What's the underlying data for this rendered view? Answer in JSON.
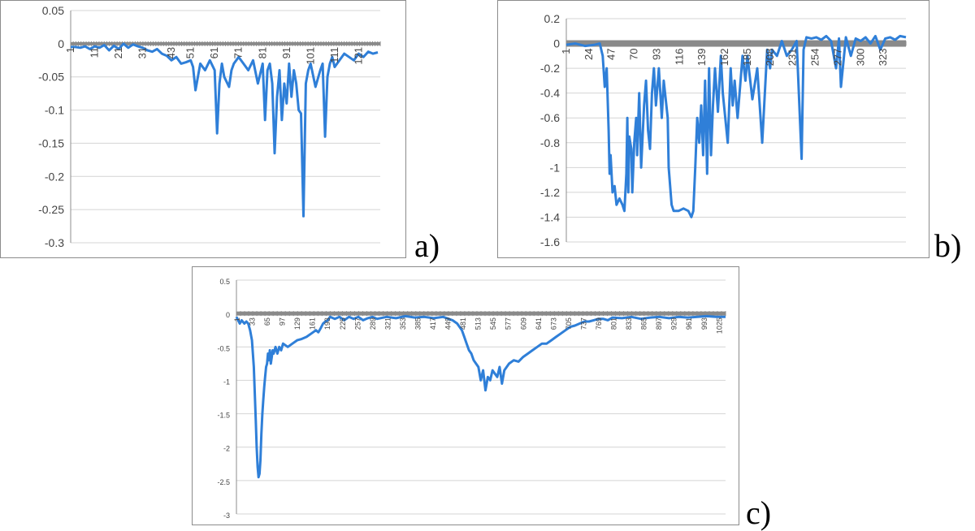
{
  "panel_labels": [
    "a)",
    "b)",
    "c)"
  ],
  "colors": {
    "series": "#2f7fd8",
    "grid": "#d4d4d4",
    "zero_band": "#8a8a8a",
    "axis": "#8c8c8c",
    "tick_text": "#444444"
  },
  "chart_data": [
    {
      "panel": "a)",
      "type": "line",
      "ylim": [
        -0.3,
        0.05
      ],
      "yticks": [
        0.05,
        0,
        -0.05,
        -0.1,
        -0.15,
        -0.2,
        -0.25,
        -0.3
      ],
      "ytick_labels": [
        "0.05",
        "0",
        "-0.05",
        "-0.1",
        "-0.15",
        "-0.2",
        "-0.25",
        "-0.3"
      ],
      "xlim": [
        1,
        130
      ],
      "xticks": [
        1,
        11,
        21,
        31,
        43,
        51,
        61,
        71,
        81,
        91,
        101,
        111,
        121
      ],
      "xtick_labels": [
        "1",
        "11",
        "21",
        "31",
        "43",
        "51",
        "61",
        "71",
        "81",
        "91",
        "101",
        "111",
        "121"
      ],
      "grid": true,
      "legend": "none",
      "series": [
        {
          "x": [
            1,
            3,
            5,
            7,
            9,
            11,
            13,
            15,
            17,
            19,
            21,
            23,
            25,
            27,
            29,
            31,
            33,
            35,
            37,
            39,
            41,
            43,
            45,
            47,
            49,
            51,
            52,
            53,
            55,
            57,
            59,
            61,
            62,
            63,
            64,
            65,
            67,
            68,
            69,
            71,
            73,
            75,
            77,
            79,
            81,
            82,
            83,
            84,
            85,
            86,
            87,
            88,
            89,
            90,
            91,
            92,
            93,
            94,
            95,
            96,
            97,
            98,
            99,
            100,
            101,
            103,
            105,
            106,
            107,
            108,
            109,
            110,
            111,
            113,
            115,
            117,
            119,
            121,
            123,
            125,
            127,
            129
          ],
          "y": [
            -0.005,
            -0.005,
            -0.006,
            -0.004,
            -0.008,
            -0.004,
            -0.006,
            -0.002,
            -0.01,
            -0.003,
            -0.008,
            0.0,
            -0.006,
            -0.001,
            -0.004,
            -0.006,
            -0.01,
            -0.012,
            -0.008,
            -0.015,
            -0.018,
            -0.025,
            -0.02,
            -0.03,
            -0.028,
            -0.025,
            -0.035,
            -0.07,
            -0.03,
            -0.04,
            -0.025,
            -0.04,
            -0.135,
            -0.06,
            -0.03,
            -0.05,
            -0.065,
            -0.04,
            -0.03,
            -0.02,
            -0.03,
            -0.04,
            -0.025,
            -0.06,
            -0.03,
            -0.115,
            -0.04,
            -0.03,
            -0.06,
            -0.165,
            -0.08,
            -0.04,
            -0.115,
            -0.06,
            -0.09,
            -0.03,
            -0.08,
            -0.04,
            -0.06,
            -0.1,
            -0.105,
            -0.26,
            -0.06,
            -0.04,
            -0.03,
            -0.065,
            -0.04,
            -0.03,
            -0.14,
            -0.05,
            -0.03,
            -0.02,
            -0.035,
            -0.025,
            -0.015,
            -0.02,
            -0.025,
            -0.015,
            -0.02,
            -0.012,
            -0.015,
            -0.013
          ]
        }
      ]
    },
    {
      "panel": "b)",
      "type": "line",
      "ylim": [
        -1.6,
        0.2
      ],
      "yticks": [
        0.2,
        0,
        -0.2,
        -0.4,
        -0.6,
        -0.8,
        -1,
        -1.2,
        -1.4,
        -1.6
      ],
      "ytick_labels": [
        "0.2",
        "0",
        "-0.2",
        "-0.4",
        "-0.6",
        "-0.8",
        "-1",
        "-1.2",
        "-1.4",
        "-1.6"
      ],
      "xlim": [
        1,
        346
      ],
      "xticks": [
        1,
        24,
        47,
        70,
        93,
        116,
        139,
        162,
        185,
        208,
        231,
        254,
        277,
        300,
        323
      ],
      "xtick_labels": [
        "1",
        "24",
        "47",
        "70",
        "93",
        "116",
        "139",
        "162",
        "185",
        "208",
        "231",
        "254",
        "277",
        "300",
        "323"
      ],
      "grid": true,
      "legend": "none",
      "series": [
        {
          "x": [
            1,
            10,
            20,
            30,
            35,
            38,
            40,
            42,
            44,
            45,
            46,
            48,
            50,
            52,
            55,
            58,
            60,
            62,
            63,
            64,
            65,
            67,
            68,
            70,
            72,
            73,
            75,
            77,
            80,
            82,
            84,
            86,
            88,
            90,
            92,
            95,
            98,
            100,
            104,
            105,
            108,
            110,
            115,
            120,
            125,
            128,
            130,
            132,
            134,
            136,
            138,
            140,
            142,
            144,
            146,
            148,
            150,
            152,
            155,
            158,
            160,
            165,
            168,
            170,
            172,
            175,
            180,
            183,
            185,
            190,
            195,
            200,
            205,
            208,
            210,
            215,
            220,
            225,
            230,
            235,
            240,
            242,
            245,
            250,
            255,
            260,
            265,
            270,
            275,
            278,
            280,
            285,
            290,
            295,
            300,
            305,
            310,
            315,
            320,
            325,
            330,
            335,
            340,
            346
          ],
          "y": [
            -0.01,
            0.0,
            -0.02,
            -0.01,
            0.0,
            -0.1,
            -0.35,
            -0.2,
            -0.7,
            -1.05,
            -0.9,
            -1.2,
            -1.15,
            -1.3,
            -1.25,
            -1.3,
            -1.35,
            -1.05,
            -0.6,
            -1.2,
            -0.75,
            -0.85,
            -1.2,
            -0.8,
            -0.6,
            -0.9,
            -0.4,
            -1.0,
            -0.5,
            -0.3,
            -0.7,
            -0.85,
            -0.4,
            -0.2,
            -0.5,
            -0.2,
            -0.6,
            -0.3,
            -0.6,
            -1.0,
            -1.3,
            -1.35,
            -1.35,
            -1.33,
            -1.35,
            -1.4,
            -1.35,
            -1.0,
            -0.6,
            -0.8,
            -0.5,
            -0.9,
            -0.3,
            -1.05,
            -0.2,
            -0.9,
            -0.5,
            -0.2,
            -0.55,
            -0.1,
            -0.4,
            -0.8,
            -0.2,
            -0.5,
            -0.3,
            -0.6,
            -0.1,
            -0.3,
            -0.1,
            -0.45,
            -0.2,
            -0.8,
            -0.05,
            -0.2,
            -0.05,
            -0.1,
            0.02,
            -0.1,
            -0.05,
            0.02,
            -0.93,
            -0.05,
            0.05,
            0.04,
            0.05,
            0.03,
            0.06,
            0.02,
            -0.2,
            0.04,
            -0.35,
            0.05,
            -0.1,
            0.04,
            0.02,
            0.05,
            0.0,
            0.06,
            -0.05,
            0.04,
            0.05,
            0.03,
            0.06,
            0.05
          ]
        }
      ]
    },
    {
      "panel": "c)",
      "type": "line",
      "ylim": [
        -3,
        0.5
      ],
      "yticks": [
        0.5,
        0,
        -0.5,
        -1,
        -1.5,
        -2,
        -2.5,
        -3
      ],
      "ytick_labels": [
        "0.5",
        "0",
        "-0.5",
        "-1",
        "-1.5",
        "-2",
        "-2.5",
        "-3"
      ],
      "xlim": [
        1,
        1040
      ],
      "xticks": [
        1,
        33,
        65,
        97,
        129,
        161,
        193,
        225,
        257,
        289,
        321,
        353,
        385,
        417,
        449,
        481,
        513,
        545,
        577,
        609,
        641,
        673,
        705,
        737,
        769,
        801,
        833,
        865,
        897,
        929,
        961,
        993,
        1025
      ],
      "xtick_labels": [
        "1",
        "33",
        "65",
        "97",
        "129",
        "161",
        "193",
        "225",
        "257",
        "289",
        "321",
        "353",
        "385",
        "417",
        "449",
        "481",
        "513",
        "545",
        "577",
        "609",
        "641",
        "673",
        "705",
        "737",
        "769",
        "801",
        "833",
        "865",
        "897",
        "929",
        "961",
        "993",
        "1025"
      ],
      "grid": true,
      "legend": "none",
      "series": [
        {
          "x": [
            1,
            8,
            12,
            18,
            22,
            26,
            30,
            34,
            38,
            40,
            42,
            44,
            46,
            48,
            50,
            52,
            54,
            56,
            58,
            60,
            62,
            64,
            66,
            68,
            70,
            72,
            74,
            76,
            78,
            80,
            84,
            88,
            92,
            96,
            100,
            110,
            120,
            130,
            140,
            150,
            160,
            170,
            175,
            180,
            185,
            190,
            195,
            200,
            210,
            220,
            230,
            240,
            250,
            260,
            270,
            280,
            290,
            300,
            320,
            340,
            360,
            380,
            400,
            420,
            440,
            460,
            470,
            480,
            485,
            490,
            495,
            500,
            505,
            510,
            515,
            520,
            525,
            530,
            535,
            540,
            545,
            550,
            555,
            560,
            565,
            570,
            575,
            580,
            590,
            600,
            610,
            620,
            630,
            640,
            650,
            660,
            670,
            680,
            690,
            700,
            710,
            720,
            730,
            740,
            750,
            760,
            770,
            780,
            790,
            800,
            820,
            840,
            860,
            880,
            900,
            920,
            940,
            960,
            980,
            1000,
            1020,
            1040
          ],
          "y": [
            -0.05,
            -0.15,
            -0.1,
            -0.15,
            -0.12,
            -0.15,
            -0.25,
            -0.4,
            -0.8,
            -1.2,
            -1.6,
            -2.0,
            -2.3,
            -2.45,
            -2.4,
            -2.2,
            -1.8,
            -1.5,
            -1.3,
            -1.1,
            -0.95,
            -0.8,
            -0.75,
            -0.6,
            -0.7,
            -0.55,
            -0.75,
            -0.65,
            -0.55,
            -0.6,
            -0.5,
            -0.6,
            -0.5,
            -0.55,
            -0.45,
            -0.5,
            -0.45,
            -0.4,
            -0.38,
            -0.35,
            -0.3,
            -0.25,
            -0.28,
            -0.22,
            -0.15,
            -0.12,
            -0.1,
            -0.05,
            -0.08,
            -0.05,
            -0.1,
            -0.05,
            -0.08,
            -0.05,
            -0.1,
            -0.07,
            -0.05,
            -0.08,
            -0.05,
            -0.07,
            -0.04,
            -0.06,
            -0.05,
            -0.07,
            -0.05,
            -0.1,
            -0.15,
            -0.25,
            -0.35,
            -0.45,
            -0.55,
            -0.6,
            -0.7,
            -0.75,
            -0.8,
            -1.0,
            -0.85,
            -1.15,
            -0.95,
            -1.0,
            -0.85,
            -0.9,
            -0.95,
            -0.8,
            -1.05,
            -0.85,
            -0.8,
            -0.75,
            -0.7,
            -0.72,
            -0.65,
            -0.6,
            -0.55,
            -0.5,
            -0.45,
            -0.45,
            -0.4,
            -0.35,
            -0.3,
            -0.25,
            -0.2,
            -0.18,
            -0.15,
            -0.12,
            -0.12,
            -0.1,
            -0.08,
            -0.08,
            -0.1,
            -0.06,
            -0.07,
            -0.05,
            -0.08,
            -0.06,
            -0.05,
            -0.07,
            -0.05,
            -0.06,
            -0.05,
            -0.04,
            -0.05,
            -0.05
          ]
        }
      ]
    }
  ]
}
